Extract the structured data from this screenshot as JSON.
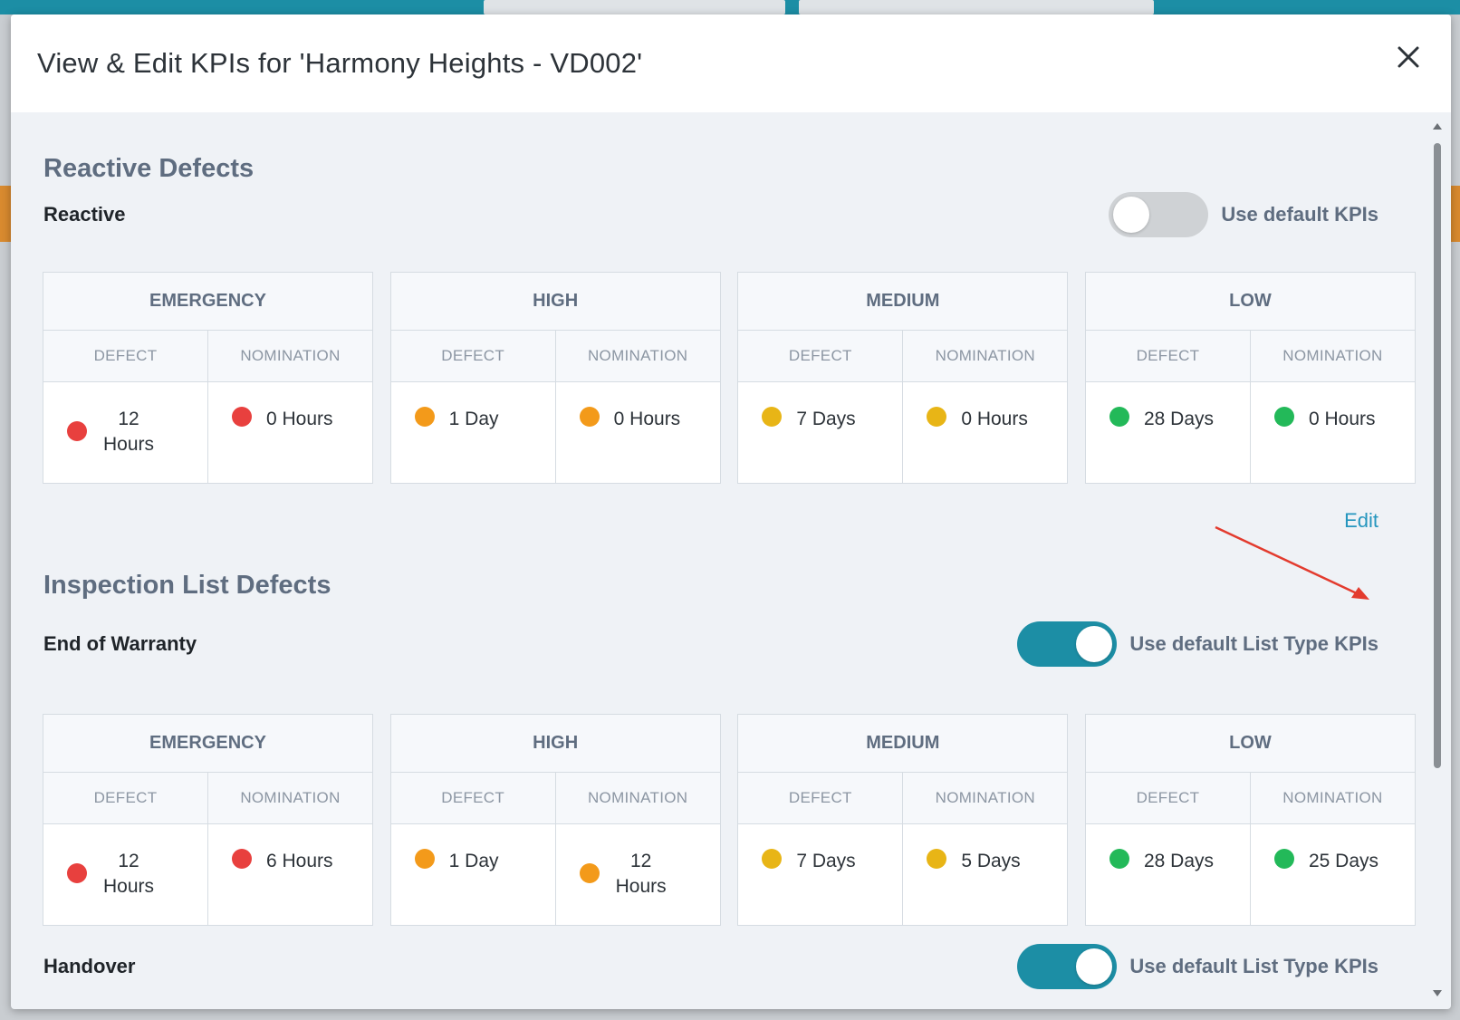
{
  "modal": {
    "title": "View & Edit KPIs for 'Harmony Heights - VD002'",
    "close_label": "×"
  },
  "reactive_section": {
    "title": "Reactive Defects",
    "subsection": "Reactive",
    "toggle_label": "Use default KPIs",
    "toggle_on": false,
    "edit_label": "Edit",
    "groups": [
      {
        "name": "EMERGENCY",
        "defect_label": "DEFECT",
        "nomination_label": "NOMINATION",
        "defect": "12 Hours",
        "nomination": "0 Hours",
        "color": "#e8403e"
      },
      {
        "name": "HIGH",
        "defect_label": "DEFECT",
        "nomination_label": "NOMINATION",
        "defect": "1 Day",
        "nomination": "0 Hours",
        "color": "#f39a1a"
      },
      {
        "name": "MEDIUM",
        "defect_label": "DEFECT",
        "nomination_label": "NOMINATION",
        "defect": "7 Days",
        "nomination": "0 Hours",
        "color": "#e8b516"
      },
      {
        "name": "LOW",
        "defect_label": "DEFECT",
        "nomination_label": "NOMINATION",
        "defect": "28 Days",
        "nomination": "0 Hours",
        "color": "#23b959"
      }
    ]
  },
  "inspection_section": {
    "title": "Inspection List Defects",
    "warranty": {
      "subsection": "End of Warranty",
      "toggle_label": "Use default List Type KPIs",
      "toggle_on": true,
      "groups": [
        {
          "name": "EMERGENCY",
          "defect_label": "DEFECT",
          "nomination_label": "NOMINATION",
          "defect": "12 Hours",
          "nomination": "6 Hours",
          "color": "#e8403e"
        },
        {
          "name": "HIGH",
          "defect_label": "DEFECT",
          "nomination_label": "NOMINATION",
          "defect": "1 Day",
          "nomination": "12 Hours",
          "color": "#f39a1a"
        },
        {
          "name": "MEDIUM",
          "defect_label": "DEFECT",
          "nomination_label": "NOMINATION",
          "defect": "7 Days",
          "nomination": "5 Days",
          "color": "#e8b516"
        },
        {
          "name": "LOW",
          "defect_label": "DEFECT",
          "nomination_label": "NOMINATION",
          "defect": "28 Days",
          "nomination": "25 Days",
          "color": "#23b959"
        }
      ]
    },
    "handover": {
      "subsection": "Handover",
      "toggle_label": "Use default List Type KPIs",
      "toggle_on": true
    }
  }
}
